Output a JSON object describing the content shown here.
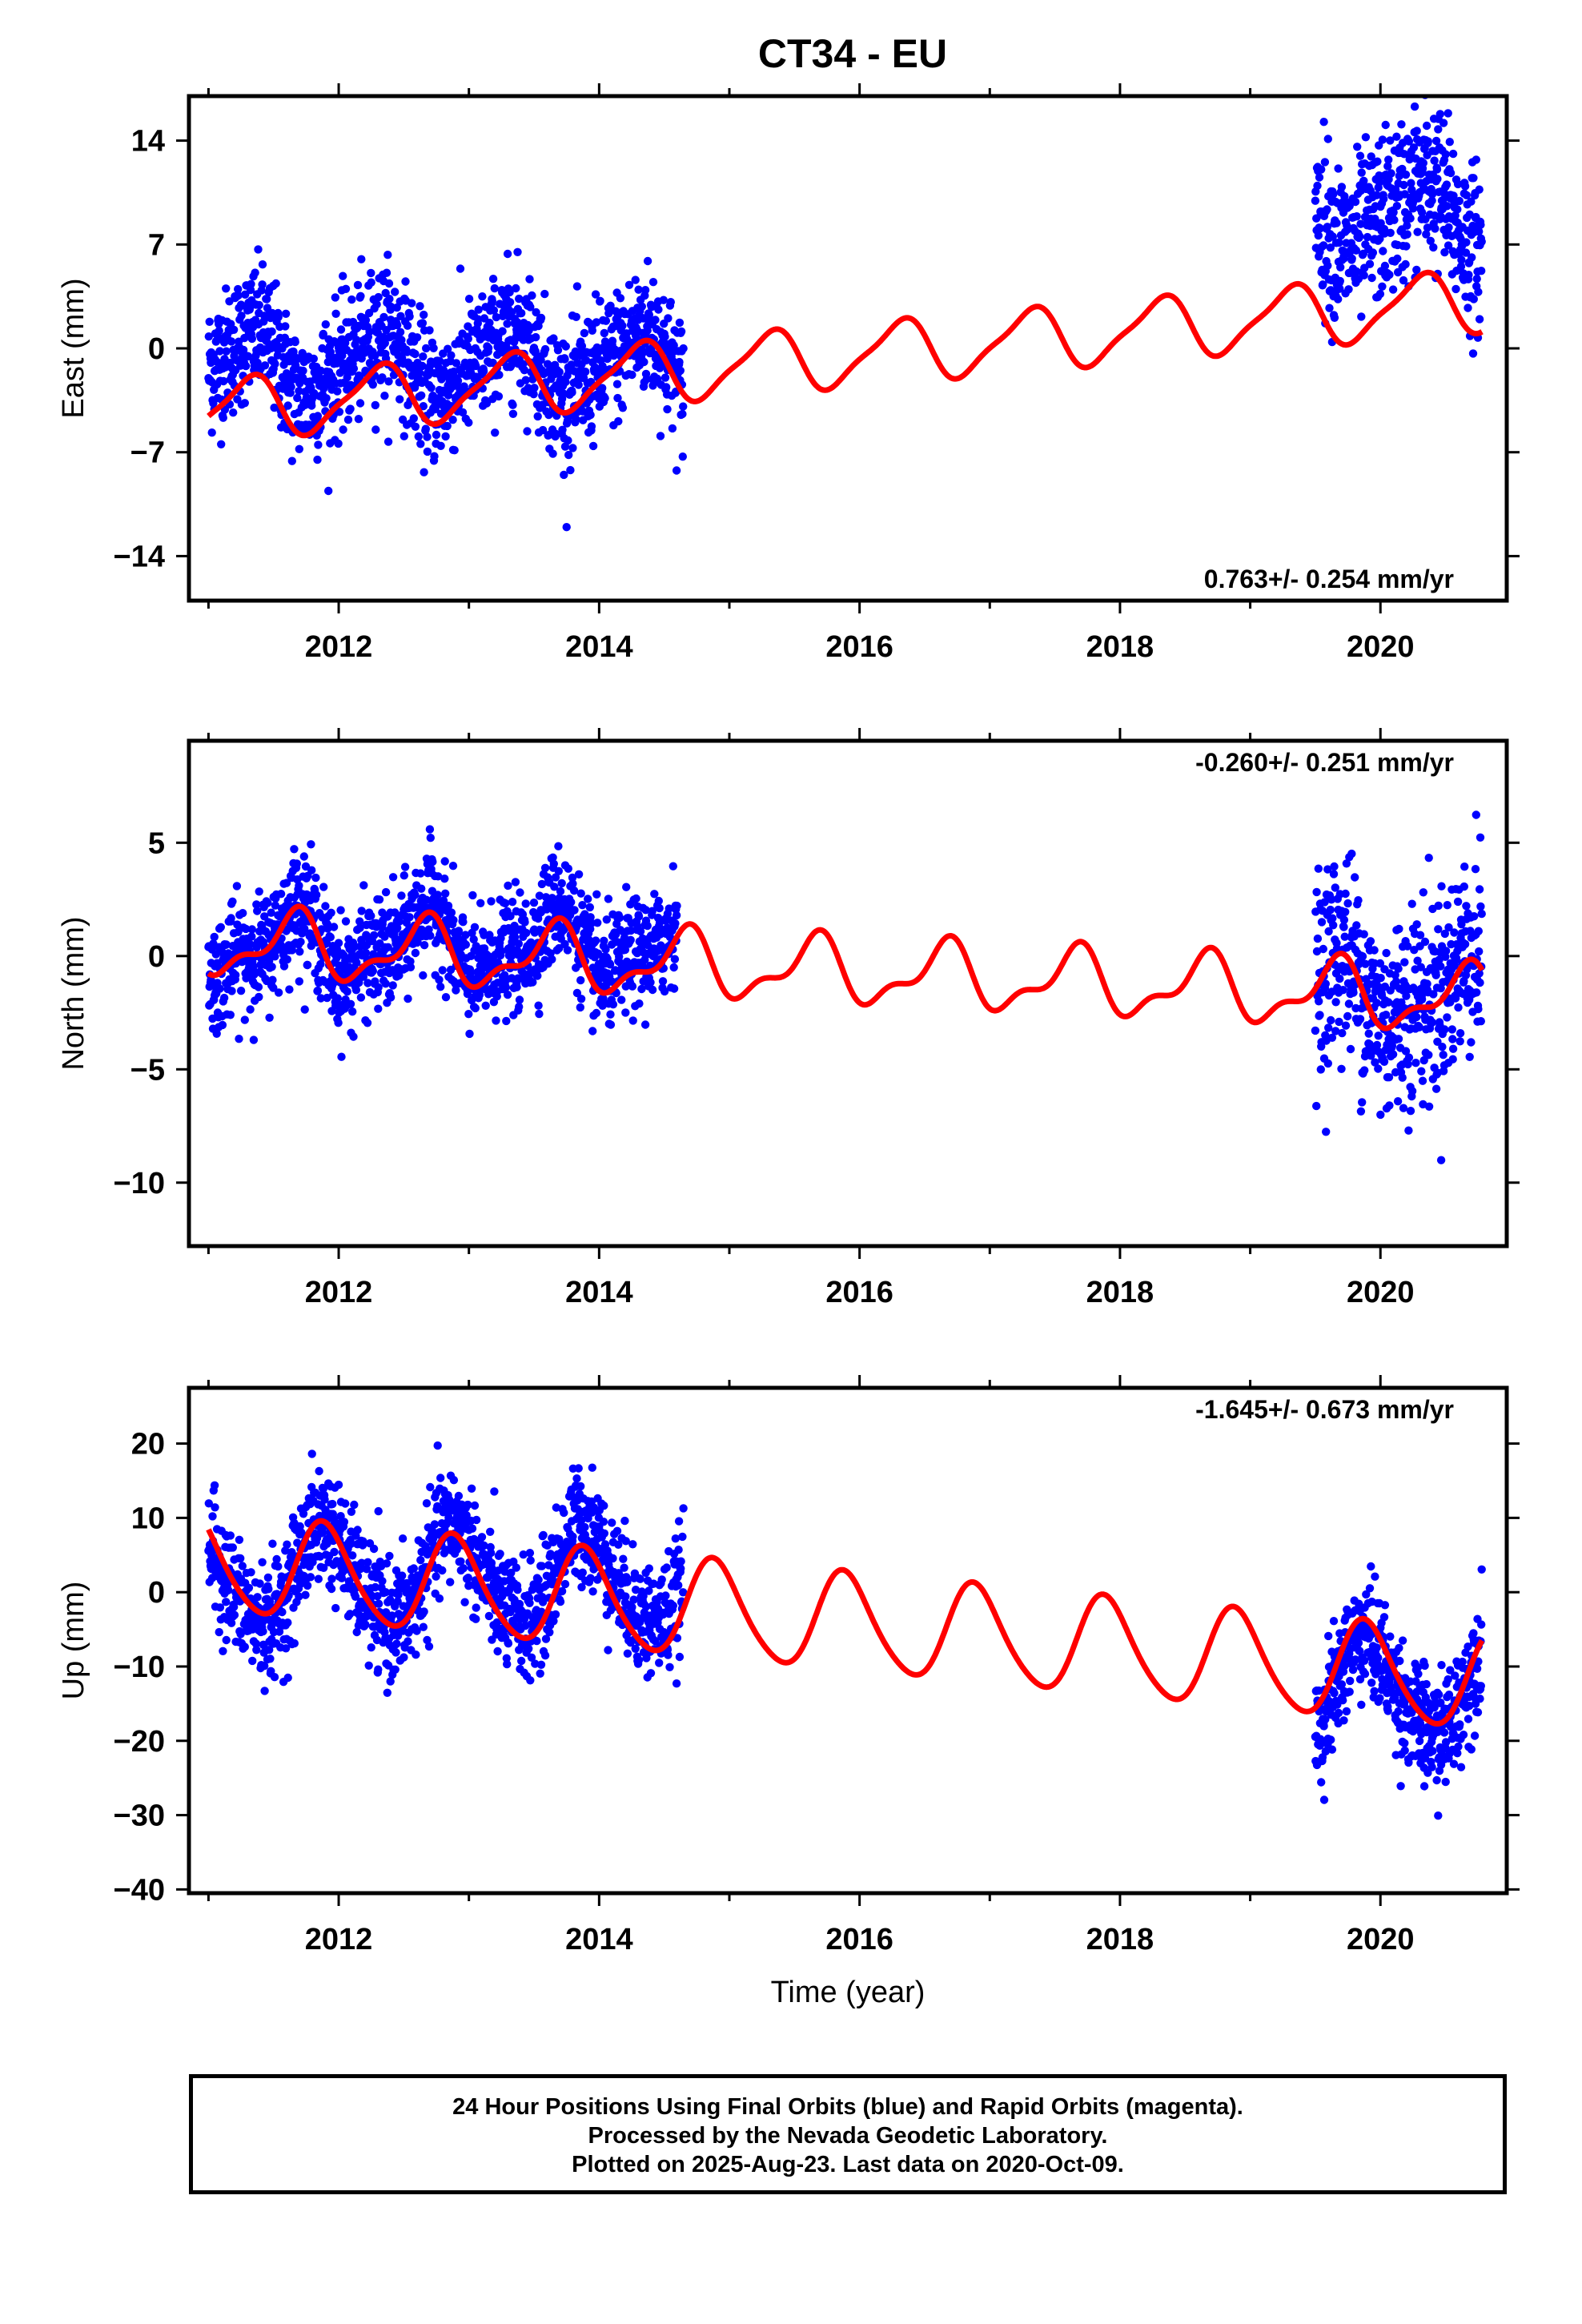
{
  "title": "CT34 - EU",
  "footer": {
    "line1": "24 Hour Positions Using Final Orbits (blue) and Rapid Orbits (magenta).",
    "line2": "Processed by the Nevada Geodetic Laboratory.",
    "line3": "Plotted on 2025-Aug-23. Last data on 2020-Oct-09."
  },
  "colors": {
    "data": "#0000ff",
    "model": "#ff0000",
    "axis": "#000000"
  },
  "chart_data": [
    {
      "type": "scatter",
      "ylabel": "East (mm)",
      "xlim": [
        2010.85,
        2020.97
      ],
      "ylim": [
        -17,
        17
      ],
      "yticks": [
        14,
        7,
        0,
        -7,
        -14
      ],
      "xticks": [
        2012,
        2014,
        2016,
        2018,
        2020
      ],
      "rate_text": "0.763+/- 0.254 mm/yr",
      "rate_position": "bottom-right",
      "data_segments": [
        {
          "x": [
            2011.0,
            2014.65
          ],
          "mid": -1,
          "spread": 4
        },
        {
          "x": [
            2019.5,
            2020.78
          ],
          "mid": 9,
          "spread": 5
        }
      ],
      "model": {
        "offset": -0.8,
        "trend": 0.763,
        "amp1": 2.0,
        "phase1": 0.05,
        "amp2": 0.5,
        "phase2": 0.3,
        "ref": 2015.5
      }
    },
    {
      "type": "scatter",
      "ylabel": "North (mm)",
      "xlim": [
        2010.85,
        2020.97
      ],
      "ylim": [
        -12.8,
        9.5
      ],
      "yticks": [
        5,
        0,
        -5,
        -10
      ],
      "xticks": [
        2012,
        2014,
        2016,
        2018,
        2020
      ],
      "rate_text": "-0.260+/- 0.251 mm/yr",
      "rate_position": "top-right",
      "data_segments": [
        {
          "x": [
            2011.0,
            2014.6
          ],
          "mid": 0.5,
          "spread": 2.2
        },
        {
          "x": [
            2019.5,
            2020.78
          ],
          "mid": -1.5,
          "spread": 4
        }
      ],
      "model": {
        "offset": -0.6,
        "trend": -0.26,
        "amp1": 1.3,
        "phase1": 0.4,
        "amp2": 0.6,
        "phase2": 0.1,
        "ref": 2015.5
      }
    },
    {
      "type": "scatter",
      "ylabel": "Up (mm)",
      "xlabel": "Time (year)",
      "xlim": [
        2010.85,
        2020.97
      ],
      "ylim": [
        -40.5,
        27.5
      ],
      "yticks": [
        20,
        10,
        0,
        -10,
        -20,
        -30,
        -40
      ],
      "xticks": [
        2012,
        2014,
        2016,
        2018,
        2020
      ],
      "rate_text": "-1.645+/- 0.673 mm/yr",
      "rate_position": "top-right",
      "data_segments": [
        {
          "x": [
            2011.0,
            2014.65
          ],
          "mid": 2,
          "spread": 7
        },
        {
          "x": [
            2019.5,
            2020.78
          ],
          "mid": -13,
          "spread": 7
        }
      ],
      "model": {
        "offset": -3.5,
        "trend": -1.645,
        "amp1": 6.5,
        "phase1": 0.64,
        "amp2": 0.8,
        "phase2": 0.2,
        "ref": 2015.5
      }
    }
  ]
}
